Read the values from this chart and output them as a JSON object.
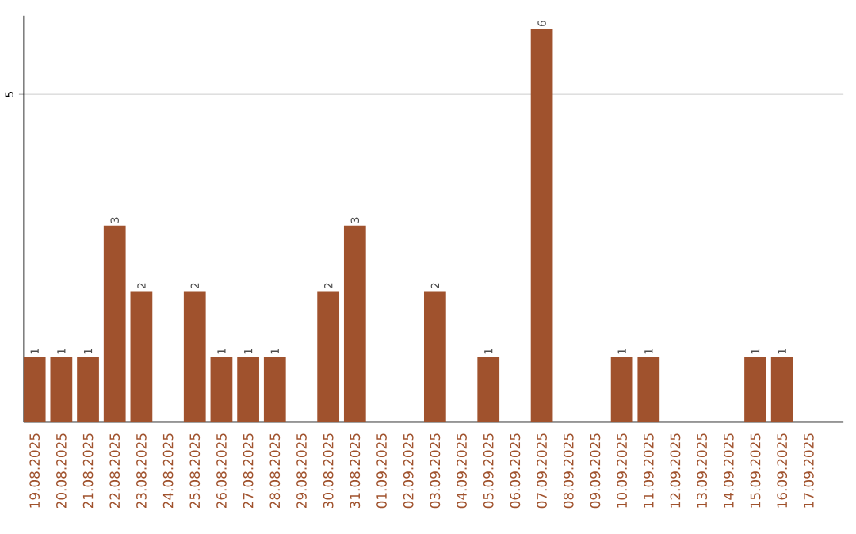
{
  "chart_data": {
    "type": "bar",
    "categories": [
      "19.08.2025",
      "20.08.2025",
      "21.08.2025",
      "22.08.2025",
      "23.08.2025",
      "24.08.2025",
      "25.08.2025",
      "26.08.2025",
      "27.08.2025",
      "28.08.2025",
      "29.08.2025",
      "30.08.2025",
      "31.08.2025",
      "01.09.2025",
      "02.09.2025",
      "03.09.2025",
      "04.09.2025",
      "05.09.2025",
      "06.09.2025",
      "07.09.2025",
      "08.09.2025",
      "09.09.2025",
      "10.09.2025",
      "11.09.2025",
      "12.09.2025",
      "13.09.2025",
      "14.09.2025",
      "15.09.2025",
      "16.09.2025",
      "17.09.2025"
    ],
    "values": [
      1,
      1,
      1,
      3,
      2,
      0,
      2,
      1,
      1,
      1,
      0,
      2,
      3,
      0,
      0,
      2,
      0,
      1,
      0,
      6,
      0,
      0,
      1,
      1,
      0,
      0,
      0,
      1,
      1,
      0
    ],
    "value_labels": [
      "1",
      "1",
      "1",
      "3",
      "2",
      null,
      "2",
      "1",
      "1",
      "1",
      null,
      "2",
      "3",
      null,
      null,
      "2",
      null,
      "1",
      null,
      "6",
      null,
      null,
      "1",
      "1",
      null,
      null,
      null,
      "1",
      "1",
      null
    ],
    "color": "#a0522d",
    "ylim": [
      0,
      6.2
    ],
    "yticks": [
      5
    ],
    "grid": "y"
  }
}
